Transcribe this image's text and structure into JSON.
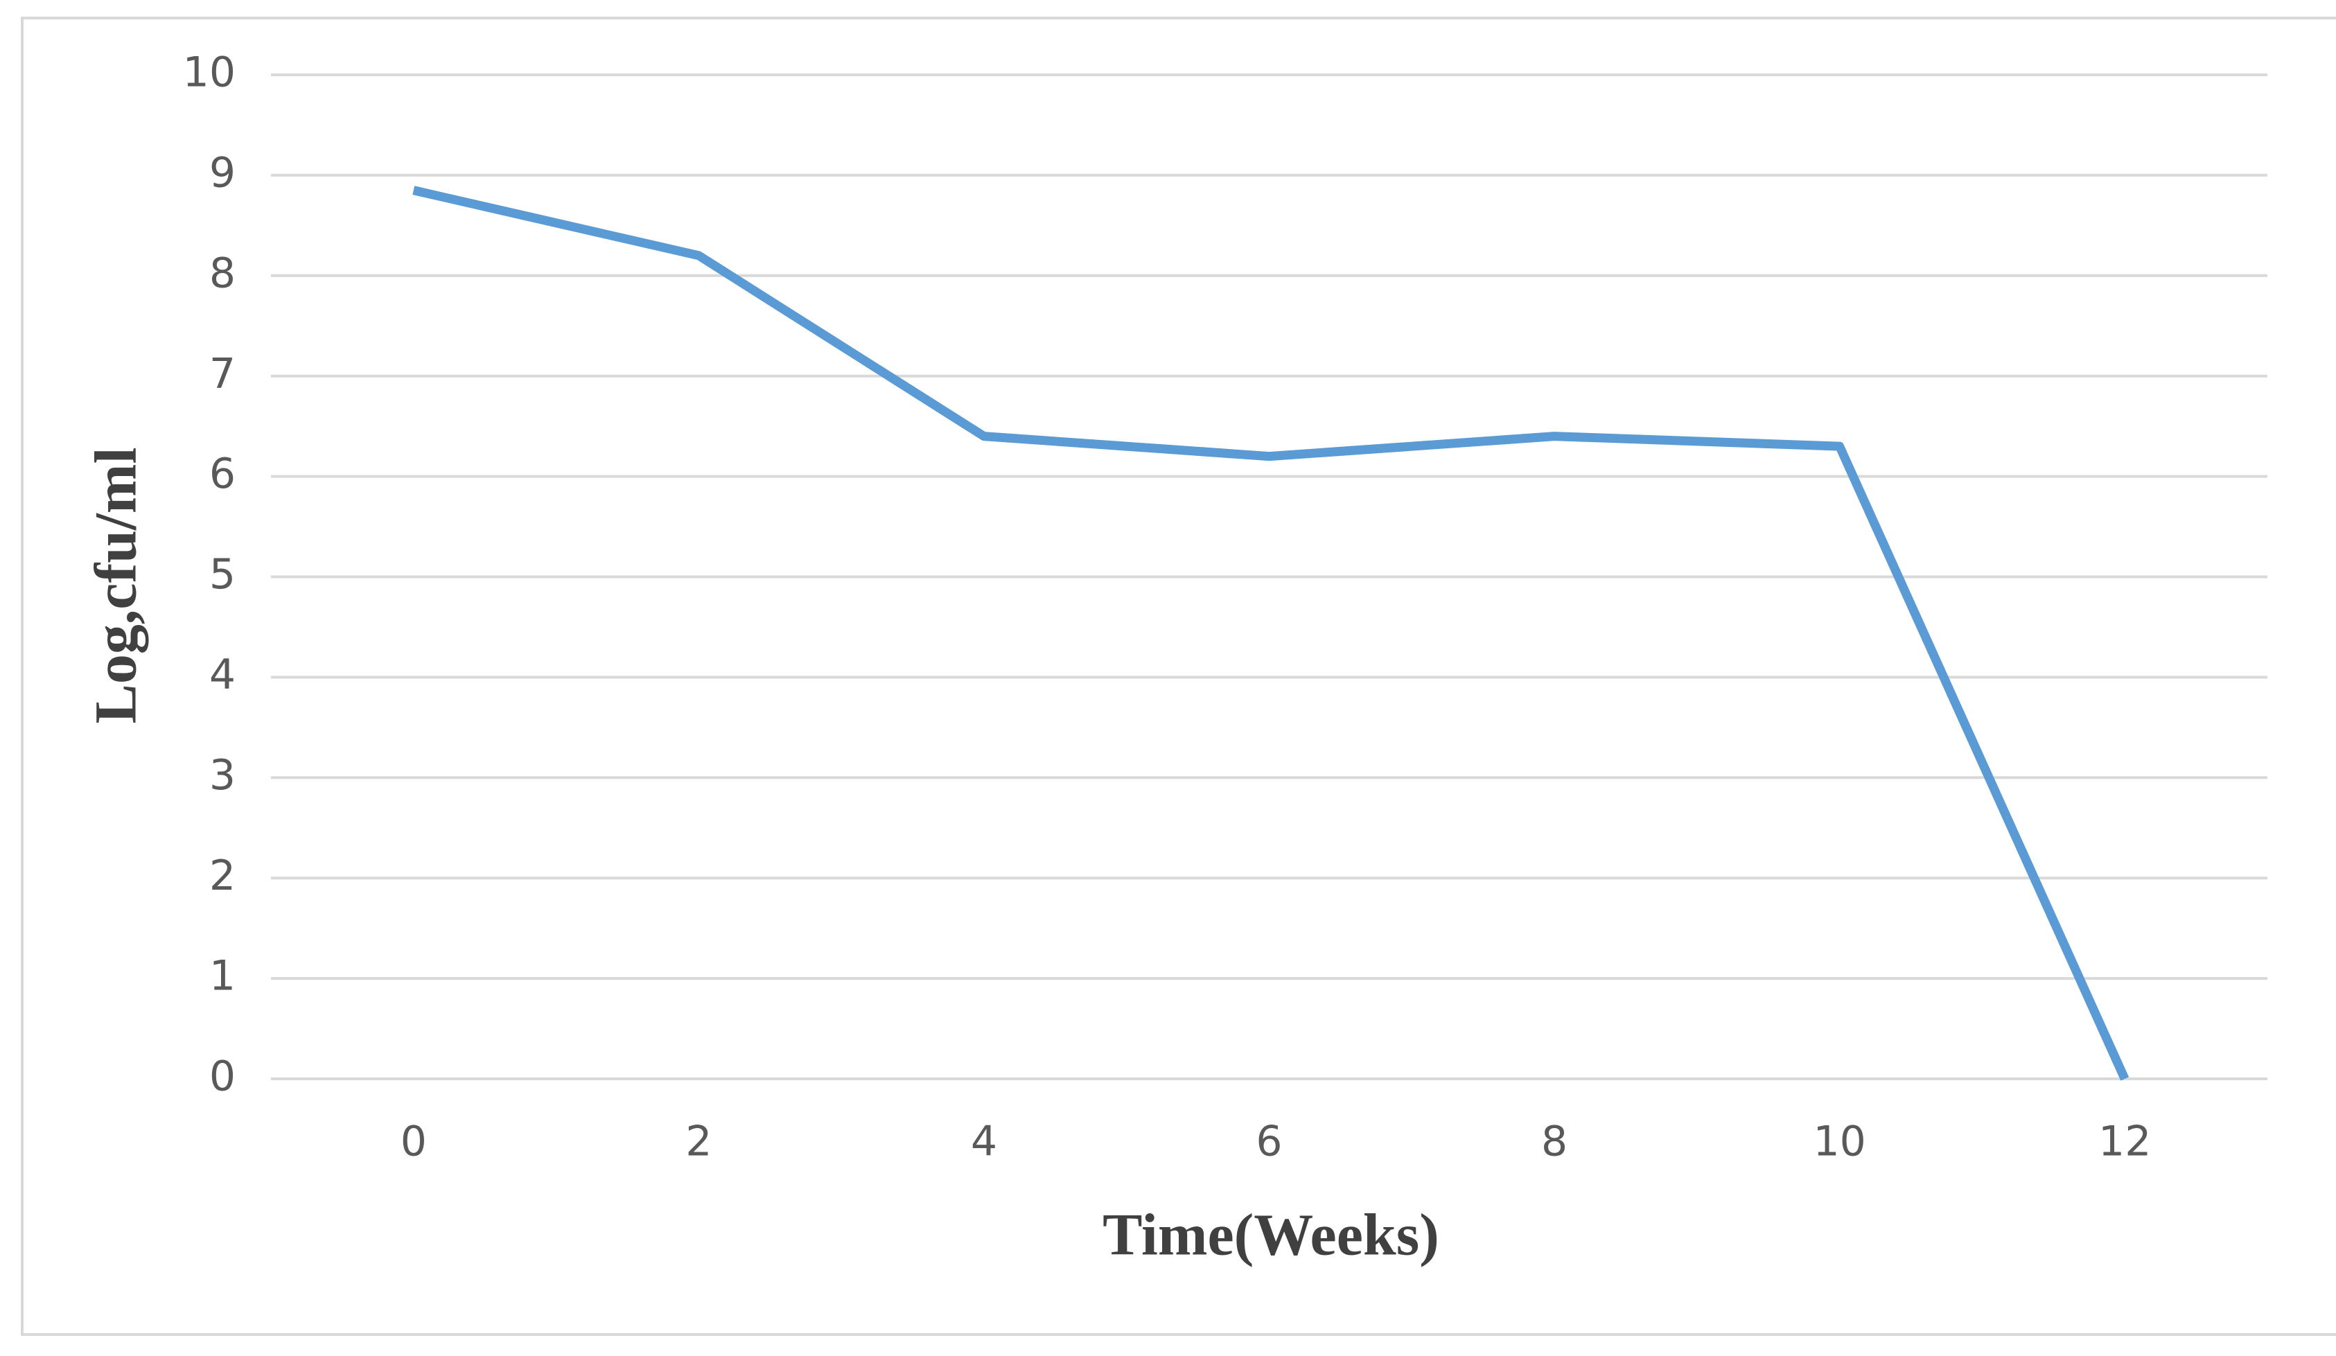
{
  "chart_data": {
    "type": "line",
    "x_label": "Time(Weeks)",
    "y_label": "Log,cfu/ml",
    "categories": [
      "0",
      "2",
      "4",
      "6",
      "8",
      "10",
      "12"
    ],
    "series": [
      {
        "name": "Log,cfu/ml",
        "color": "#5b9bd5",
        "values": [
          8.85,
          8.2,
          6.4,
          6.2,
          6.4,
          6.3,
          0
        ]
      }
    ],
    "ylim": [
      0,
      10
    ],
    "yticks": [
      0,
      1,
      2,
      3,
      4,
      5,
      6,
      7,
      8,
      9,
      10
    ],
    "grid": true
  }
}
